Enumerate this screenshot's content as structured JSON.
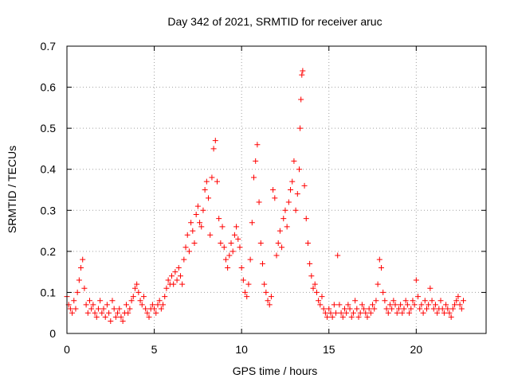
{
  "chart_data": {
    "type": "scatter",
    "title": "Day 342 of 2021, SRMTID for receiver aruc",
    "xlabel": "GPS time / hours",
    "ylabel": "SRMTID / TECUs",
    "xlim": [
      0,
      24
    ],
    "ylim": [
      0,
      0.7
    ],
    "xticks": [
      0,
      5,
      10,
      15,
      20
    ],
    "xtick_labels": [
      "0",
      "5",
      "10",
      "15",
      "20"
    ],
    "yticks": [
      0,
      0.1,
      0.2,
      0.3,
      0.4,
      0.5,
      0.6,
      0.7
    ],
    "ytick_labels": [
      "0",
      "0.1",
      "0.2",
      "0.3",
      "0.4",
      "0.5",
      "0.6",
      "0.7"
    ],
    "grid": true,
    "marker": "+",
    "series": [
      {
        "name": "SRMTID",
        "color": "#ff0000",
        "points": [
          [
            0.0,
            0.09
          ],
          [
            0.1,
            0.07
          ],
          [
            0.2,
            0.06
          ],
          [
            0.3,
            0.05
          ],
          [
            0.4,
            0.08
          ],
          [
            0.5,
            0.06
          ],
          [
            0.6,
            0.1
          ],
          [
            0.7,
            0.13
          ],
          [
            0.8,
            0.16
          ],
          [
            0.9,
            0.18
          ],
          [
            1.0,
            0.11
          ],
          [
            1.1,
            0.07
          ],
          [
            1.2,
            0.05
          ],
          [
            1.3,
            0.08
          ],
          [
            1.4,
            0.06
          ],
          [
            1.5,
            0.07
          ],
          [
            1.6,
            0.05
          ],
          [
            1.7,
            0.04
          ],
          [
            1.8,
            0.06
          ],
          [
            1.9,
            0.08
          ],
          [
            2.0,
            0.05
          ],
          [
            2.1,
            0.06
          ],
          [
            2.2,
            0.04
          ],
          [
            2.3,
            0.07
          ],
          [
            2.4,
            0.05
          ],
          [
            2.5,
            0.03
          ],
          [
            2.6,
            0.08
          ],
          [
            2.7,
            0.06
          ],
          [
            2.8,
            0.04
          ],
          [
            2.9,
            0.05
          ],
          [
            3.0,
            0.06
          ],
          [
            3.1,
            0.04
          ],
          [
            3.2,
            0.03
          ],
          [
            3.3,
            0.05
          ],
          [
            3.4,
            0.07
          ],
          [
            3.5,
            0.05
          ],
          [
            3.6,
            0.06
          ],
          [
            3.7,
            0.08
          ],
          [
            3.8,
            0.09
          ],
          [
            3.9,
            0.11
          ],
          [
            4.0,
            0.12
          ],
          [
            4.1,
            0.1
          ],
          [
            4.2,
            0.08
          ],
          [
            4.3,
            0.07
          ],
          [
            4.4,
            0.09
          ],
          [
            4.5,
            0.06
          ],
          [
            4.6,
            0.05
          ],
          [
            4.7,
            0.04
          ],
          [
            4.8,
            0.06
          ],
          [
            4.9,
            0.07
          ],
          [
            5.0,
            0.06
          ],
          [
            5.1,
            0.05
          ],
          [
            5.2,
            0.07
          ],
          [
            5.3,
            0.08
          ],
          [
            5.4,
            0.06
          ],
          [
            5.5,
            0.07
          ],
          [
            5.6,
            0.09
          ],
          [
            5.7,
            0.11
          ],
          [
            5.8,
            0.13
          ],
          [
            5.9,
            0.12
          ],
          [
            6.0,
            0.14
          ],
          [
            6.1,
            0.12
          ],
          [
            6.2,
            0.15
          ],
          [
            6.3,
            0.13
          ],
          [
            6.4,
            0.16
          ],
          [
            6.5,
            0.14
          ],
          [
            6.6,
            0.12
          ],
          [
            6.7,
            0.18
          ],
          [
            6.8,
            0.21
          ],
          [
            6.9,
            0.24
          ],
          [
            7.0,
            0.2
          ],
          [
            7.1,
            0.27
          ],
          [
            7.2,
            0.25
          ],
          [
            7.3,
            0.22
          ],
          [
            7.4,
            0.29
          ],
          [
            7.5,
            0.31
          ],
          [
            7.6,
            0.27
          ],
          [
            7.7,
            0.26
          ],
          [
            7.8,
            0.3
          ],
          [
            7.9,
            0.35
          ],
          [
            8.0,
            0.37
          ],
          [
            8.1,
            0.33
          ],
          [
            8.2,
            0.24
          ],
          [
            8.3,
            0.38
          ],
          [
            8.4,
            0.45
          ],
          [
            8.5,
            0.47
          ],
          [
            8.6,
            0.37
          ],
          [
            8.7,
            0.28
          ],
          [
            8.8,
            0.22
          ],
          [
            8.9,
            0.26
          ],
          [
            9.0,
            0.21
          ],
          [
            9.1,
            0.18
          ],
          [
            9.2,
            0.16
          ],
          [
            9.3,
            0.19
          ],
          [
            9.4,
            0.22
          ],
          [
            9.5,
            0.2
          ],
          [
            9.6,
            0.24
          ],
          [
            9.7,
            0.26
          ],
          [
            9.8,
            0.23
          ],
          [
            9.9,
            0.21
          ],
          [
            10.0,
            0.16
          ],
          [
            10.1,
            0.13
          ],
          [
            10.2,
            0.1
          ],
          [
            10.3,
            0.09
          ],
          [
            10.4,
            0.12
          ],
          [
            10.5,
            0.18
          ],
          [
            10.6,
            0.27
          ],
          [
            10.7,
            0.38
          ],
          [
            10.8,
            0.42
          ],
          [
            10.9,
            0.46
          ],
          [
            11.0,
            0.32
          ],
          [
            11.1,
            0.22
          ],
          [
            11.2,
            0.17
          ],
          [
            11.3,
            0.12
          ],
          [
            11.4,
            0.1
          ],
          [
            11.5,
            0.08
          ],
          [
            11.6,
            0.07
          ],
          [
            11.7,
            0.09
          ],
          [
            11.8,
            0.35
          ],
          [
            11.9,
            0.33
          ],
          [
            12.0,
            0.19
          ],
          [
            12.1,
            0.22
          ],
          [
            12.2,
            0.25
          ],
          [
            12.3,
            0.21
          ],
          [
            12.4,
            0.28
          ],
          [
            12.5,
            0.3
          ],
          [
            12.6,
            0.26
          ],
          [
            12.7,
            0.32
          ],
          [
            12.8,
            0.35
          ],
          [
            12.9,
            0.37
          ],
          [
            13.0,
            0.42
          ],
          [
            13.1,
            0.3
          ],
          [
            13.2,
            0.34
          ],
          [
            13.3,
            0.4
          ],
          [
            13.35,
            0.5
          ],
          [
            13.4,
            0.57
          ],
          [
            13.45,
            0.63
          ],
          [
            13.5,
            0.64
          ],
          [
            13.6,
            0.36
          ],
          [
            13.7,
            0.28
          ],
          [
            13.8,
            0.22
          ],
          [
            13.9,
            0.17
          ],
          [
            14.0,
            0.14
          ],
          [
            14.1,
            0.11
          ],
          [
            14.2,
            0.12
          ],
          [
            14.3,
            0.1
          ],
          [
            14.4,
            0.08
          ],
          [
            14.5,
            0.07
          ],
          [
            14.6,
            0.09
          ],
          [
            14.7,
            0.06
          ],
          [
            14.8,
            0.05
          ],
          [
            14.9,
            0.04
          ],
          [
            15.0,
            0.06
          ],
          [
            15.1,
            0.05
          ],
          [
            15.2,
            0.04
          ],
          [
            15.3,
            0.07
          ],
          [
            15.4,
            0.05
          ],
          [
            15.5,
            0.19
          ],
          [
            15.6,
            0.07
          ],
          [
            15.7,
            0.05
          ],
          [
            15.8,
            0.04
          ],
          [
            15.9,
            0.06
          ],
          [
            16.0,
            0.05
          ],
          [
            16.1,
            0.07
          ],
          [
            16.2,
            0.06
          ],
          [
            16.3,
            0.04
          ],
          [
            16.4,
            0.05
          ],
          [
            16.5,
            0.08
          ],
          [
            16.6,
            0.06
          ],
          [
            16.7,
            0.04
          ],
          [
            16.8,
            0.05
          ],
          [
            16.9,
            0.07
          ],
          [
            17.0,
            0.06
          ],
          [
            17.1,
            0.05
          ],
          [
            17.2,
            0.04
          ],
          [
            17.3,
            0.06
          ],
          [
            17.4,
            0.05
          ],
          [
            17.5,
            0.07
          ],
          [
            17.6,
            0.06
          ],
          [
            17.7,
            0.08
          ],
          [
            17.8,
            0.12
          ],
          [
            17.9,
            0.18
          ],
          [
            18.0,
            0.16
          ],
          [
            18.1,
            0.1
          ],
          [
            18.2,
            0.08
          ],
          [
            18.3,
            0.06
          ],
          [
            18.4,
            0.05
          ],
          [
            18.5,
            0.07
          ],
          [
            18.6,
            0.06
          ],
          [
            18.7,
            0.08
          ],
          [
            18.8,
            0.07
          ],
          [
            18.9,
            0.05
          ],
          [
            19.0,
            0.06
          ],
          [
            19.1,
            0.07
          ],
          [
            19.2,
            0.05
          ],
          [
            19.3,
            0.06
          ],
          [
            19.4,
            0.08
          ],
          [
            19.5,
            0.07
          ],
          [
            19.6,
            0.05
          ],
          [
            19.7,
            0.06
          ],
          [
            19.8,
            0.08
          ],
          [
            19.9,
            0.07
          ],
          [
            20.0,
            0.13
          ],
          [
            20.1,
            0.09
          ],
          [
            20.2,
            0.06
          ],
          [
            20.3,
            0.07
          ],
          [
            20.4,
            0.05
          ],
          [
            20.5,
            0.08
          ],
          [
            20.6,
            0.06
          ],
          [
            20.7,
            0.07
          ],
          [
            20.8,
            0.11
          ],
          [
            20.9,
            0.08
          ],
          [
            21.0,
            0.06
          ],
          [
            21.1,
            0.07
          ],
          [
            21.2,
            0.05
          ],
          [
            21.3,
            0.06
          ],
          [
            21.4,
            0.08
          ],
          [
            21.5,
            0.06
          ],
          [
            21.6,
            0.05
          ],
          [
            21.7,
            0.07
          ],
          [
            21.8,
            0.06
          ],
          [
            21.9,
            0.05
          ],
          [
            22.0,
            0.04
          ],
          [
            22.1,
            0.06
          ],
          [
            22.2,
            0.07
          ],
          [
            22.3,
            0.08
          ],
          [
            22.4,
            0.09
          ],
          [
            22.5,
            0.07
          ],
          [
            22.6,
            0.06
          ],
          [
            22.7,
            0.08
          ]
        ]
      }
    ]
  }
}
